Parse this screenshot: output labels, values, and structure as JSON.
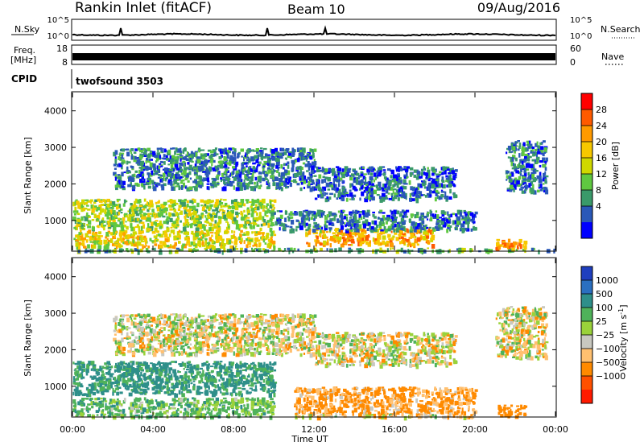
{
  "header": {
    "station": "Rankin Inlet (fitACF)",
    "beam": "Beam 10",
    "date": "09/Aug/2016"
  },
  "nsky_panel": {
    "left_label": "N.Sky",
    "right_label": "N.Search",
    "ticks": [
      "10^5",
      "10^0"
    ]
  },
  "freq_panel": {
    "left_label": "Freq.",
    "left_unit": "[MHz]",
    "right_label": "Nave",
    "left_ticks": [
      "18",
      "8"
    ],
    "right_ticks": [
      "60",
      "0"
    ]
  },
  "cpid": {
    "label": "CPID",
    "value": "twofsound 3503"
  },
  "x_axis": {
    "label": "Time UT",
    "ticks": [
      "00:00",
      "04:00",
      "08:00",
      "12:00",
      "16:00",
      "20:00",
      "00:00"
    ]
  },
  "power_colorbar": {
    "label": "Power [dB]",
    "ticks": [
      "28",
      "24",
      "20",
      "16",
      "12",
      "8",
      "4"
    ],
    "colors": [
      "#ff0000",
      "#ff5a00",
      "#ff9a00",
      "#f7c800",
      "#cfd800",
      "#5fc840",
      "#3a9a6a",
      "#2a58b8",
      "#0000ff"
    ]
  },
  "velocity_colorbar": {
    "label": "Velocity [m s",
    "label_sup": "-1",
    "label_close": "]",
    "ticks": [
      "1000",
      "500",
      "100",
      "25",
      "−25",
      "−100",
      "−500",
      "−1000"
    ],
    "colors": [
      "#1f3fbf",
      "#2a6fc0",
      "#2e8f8a",
      "#4fb25a",
      "#9ad23a",
      "#c8c8c0",
      "#ffc070",
      "#ff8a00",
      "#ff5000",
      "#ff1a00"
    ]
  },
  "chart_data": [
    {
      "type": "heatmap",
      "title": "Power",
      "xlabel": "Time UT",
      "ylabel": "Slant Range [km]",
      "xlim": [
        0,
        24
      ],
      "ylim": [
        180,
        4500
      ],
      "yticks": [
        1000,
        2000,
        3000,
        4000
      ],
      "colorbar": {
        "label": "Power [dB]",
        "ticks": [
          4,
          8,
          12,
          16,
          20,
          24,
          28
        ]
      },
      "regions": [
        {
          "t0": 0.0,
          "t1": 24.0,
          "r0": 180,
          "r1": 260,
          "power_db": 10
        },
        {
          "t0": 0.0,
          "t1": 10.0,
          "r0": 300,
          "r1": 750,
          "power_db": 18
        },
        {
          "t0": 11.5,
          "t1": 18.0,
          "r0": 350,
          "r1": 800,
          "power_db": 22
        },
        {
          "t0": 21.0,
          "t1": 22.5,
          "r0": 250,
          "r1": 500,
          "power_db": 24
        },
        {
          "t0": 0.0,
          "t1": 10.0,
          "r0": 800,
          "r1": 1600,
          "power_db": 14
        },
        {
          "t0": 10.0,
          "t1": 20.0,
          "r0": 750,
          "r1": 1300,
          "power_db": 6
        },
        {
          "t0": 2.0,
          "t1": 12.0,
          "r0": 1900,
          "r1": 3000,
          "power_db": 6
        },
        {
          "t0": 12.0,
          "t1": 19.0,
          "r0": 1600,
          "r1": 2500,
          "power_db": 5
        },
        {
          "t0": 21.5,
          "t1": 23.5,
          "r0": 1800,
          "r1": 3200,
          "power_db": 6
        }
      ]
    },
    {
      "type": "heatmap",
      "title": "Velocity",
      "xlabel": "Time UT",
      "ylabel": "Slant Range [km]",
      "xlim": [
        0,
        24
      ],
      "ylim": [
        180,
        4500
      ],
      "yticks": [
        1000,
        2000,
        3000,
        4000
      ],
      "colorbar": {
        "label": "Velocity [m s-1]",
        "ticks": [
          -1000,
          -500,
          -100,
          -25,
          25,
          100,
          500,
          1000
        ]
      },
      "regions": [
        {
          "t0": 0.0,
          "t1": 10.0,
          "r0": 800,
          "r1": 1700,
          "velocity": 300
        },
        {
          "t0": 0.0,
          "t1": 10.0,
          "r0": 200,
          "r1": 700,
          "velocity": 150
        },
        {
          "t0": 11.0,
          "t1": 20.0,
          "r0": 250,
          "r1": 1000,
          "velocity": -150
        },
        {
          "t0": 11.0,
          "t1": 20.0,
          "r0": 180,
          "r1": 250,
          "velocity": 0
        },
        {
          "t0": 2.0,
          "t1": 12.0,
          "r0": 1900,
          "r1": 3000,
          "velocity": 0
        },
        {
          "t0": 12.0,
          "t1": 19.0,
          "r0": 1600,
          "r1": 2500,
          "velocity": 0
        },
        {
          "t0": 21.0,
          "t1": 23.5,
          "r0": 1800,
          "r1": 3200,
          "velocity": 0
        },
        {
          "t0": 21.0,
          "t1": 22.5,
          "r0": 200,
          "r1": 500,
          "velocity": -300
        }
      ]
    }
  ]
}
